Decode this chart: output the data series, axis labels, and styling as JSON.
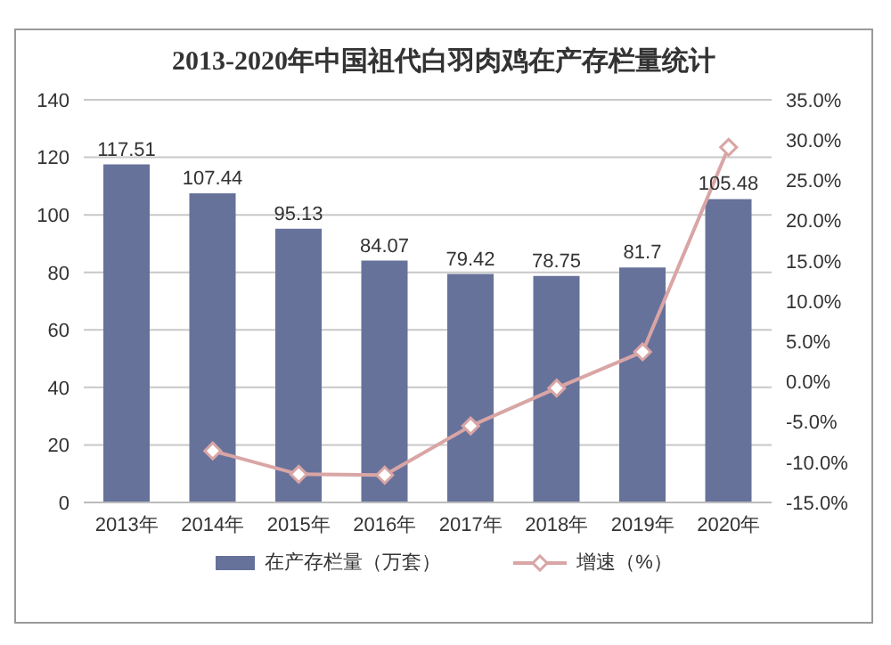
{
  "chart_data": {
    "type": "bar",
    "title": "2013-2020年中国祖代白羽肉鸡在产存栏量统计",
    "categories": [
      "2013年",
      "2014年",
      "2015年",
      "2016年",
      "2017年",
      "2018年",
      "2019年",
      "2020年"
    ],
    "series": [
      {
        "name": "在产存栏量（万套）",
        "color": "#67729b",
        "values": [
          117.51,
          107.44,
          95.13,
          84.07,
          79.42,
          78.75,
          81.7,
          105.48
        ],
        "value_labels": [
          "117.51",
          "107.44",
          "95.13",
          "84.07",
          "79.42",
          "78.75",
          "81.7",
          "105.48"
        ]
      },
      {
        "name": "增速（%）",
        "type": "line",
        "axis": "y2",
        "color": "#d9a5a5",
        "marker": "diamond",
        "line_style": "solid",
        "values": [
          null,
          -8.6,
          -11.5,
          -11.6,
          -5.5,
          -0.8,
          3.7,
          29.1
        ]
      }
    ],
    "ylim": [
      0,
      140
    ],
    "yticks": [
      0,
      20,
      40,
      60,
      80,
      100,
      120,
      140
    ],
    "y2lim": [
      -15,
      35
    ],
    "y2ticks": [
      {
        "value": -15,
        "label": "-15.0%"
      },
      {
        "value": -10,
        "label": "-10.0%"
      },
      {
        "value": -5,
        "label": "-5.0%"
      },
      {
        "value": 0,
        "label": "0.0%"
      },
      {
        "value": 5,
        "label": "5.0%"
      },
      {
        "value": 10,
        "label": "10.0%"
      },
      {
        "value": 15,
        "label": "15.0%"
      },
      {
        "value": 20,
        "label": "20.0%"
      },
      {
        "value": 25,
        "label": "25.0%"
      },
      {
        "value": 30,
        "label": "30.0%"
      },
      {
        "value": 35,
        "label": "35.0%"
      }
    ],
    "grid": "y",
    "legend": "bottom"
  }
}
